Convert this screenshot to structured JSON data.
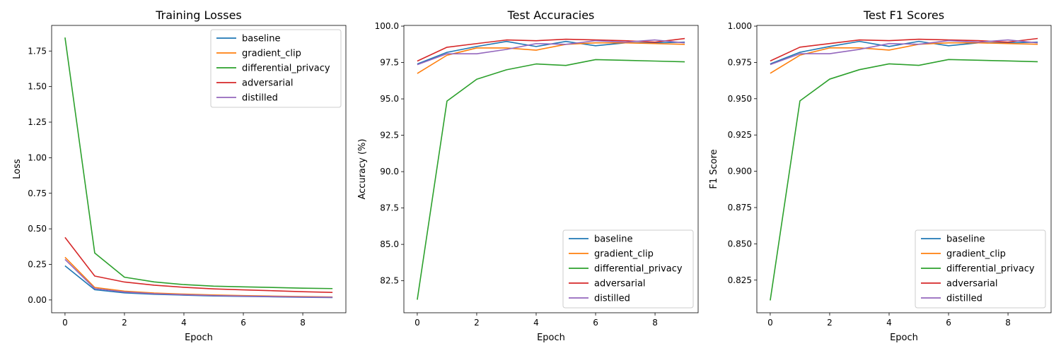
{
  "chart_data": [
    {
      "type": "line",
      "title": "Training Losses",
      "xlabel": "Epoch",
      "ylabel": "Loss",
      "xlim": [
        -0.45,
        9.45
      ],
      "ylim": [
        -0.09,
        1.93
      ],
      "xticks": [
        0,
        2,
        4,
        6,
        8
      ],
      "xtick_labels": [
        "0",
        "2",
        "4",
        "6",
        "8"
      ],
      "yticks": [
        0.0,
        0.25,
        0.5,
        0.75,
        1.0,
        1.25,
        1.5,
        1.75
      ],
      "ytick_labels": [
        "0.00",
        "0.25",
        "0.50",
        "0.75",
        "1.00",
        "1.25",
        "1.50",
        "1.75"
      ],
      "legend_position": "upper right",
      "x": [
        0,
        1,
        2,
        3,
        4,
        5,
        6,
        7,
        8,
        9
      ],
      "series": [
        {
          "name": "baseline",
          "color": "#1f77b4",
          "values": [
            0.24,
            0.072,
            0.05,
            0.04,
            0.034,
            0.028,
            0.025,
            0.022,
            0.019,
            0.017
          ]
        },
        {
          "name": "gradient_clip",
          "color": "#ff7f0e",
          "values": [
            0.3,
            0.088,
            0.062,
            0.049,
            0.041,
            0.035,
            0.031,
            0.027,
            0.024,
            0.021
          ]
        },
        {
          "name": "differential_privacy",
          "color": "#2ca02c",
          "values": [
            1.845,
            0.33,
            0.16,
            0.127,
            0.108,
            0.097,
            0.092,
            0.088,
            0.083,
            0.08
          ]
        },
        {
          "name": "adversarial",
          "color": "#d62728",
          "values": [
            0.44,
            0.168,
            0.126,
            0.104,
            0.089,
            0.078,
            0.071,
            0.065,
            0.058,
            0.053
          ]
        },
        {
          "name": "distilled",
          "color": "#9467bd",
          "values": [
            0.285,
            0.08,
            0.056,
            0.044,
            0.037,
            0.031,
            0.027,
            0.024,
            0.021,
            0.019
          ]
        }
      ]
    },
    {
      "type": "line",
      "title": "Test Accuracies",
      "xlabel": "Epoch",
      "ylabel": "Accuracy (%)",
      "xlim": [
        -0.45,
        9.45
      ],
      "ylim": [
        80.3,
        100.05
      ],
      "xticks": [
        0,
        2,
        4,
        6,
        8
      ],
      "xtick_labels": [
        "0",
        "2",
        "4",
        "6",
        "8"
      ],
      "yticks": [
        82.5,
        85.0,
        87.5,
        90.0,
        92.5,
        95.0,
        97.5,
        100.0
      ],
      "ytick_labels": [
        "82.5",
        "85.0",
        "87.5",
        "90.0",
        "92.5",
        "95.0",
        "97.5",
        "100.0"
      ],
      "legend_position": "lower right",
      "x": [
        0,
        1,
        2,
        3,
        4,
        5,
        6,
        7,
        8,
        9
      ],
      "series": [
        {
          "name": "baseline",
          "color": "#1f77b4",
          "values": [
            97.4,
            98.2,
            98.6,
            98.95,
            98.6,
            98.95,
            98.65,
            98.85,
            98.85,
            98.9
          ]
        },
        {
          "name": "gradient_clip",
          "color": "#ff7f0e",
          "values": [
            96.75,
            98.0,
            98.5,
            98.5,
            98.35,
            98.75,
            98.85,
            98.85,
            98.8,
            98.75
          ]
        },
        {
          "name": "differential_privacy",
          "color": "#2ca02c",
          "values": [
            81.2,
            94.85,
            96.35,
            97.0,
            97.4,
            97.3,
            97.7,
            97.65,
            97.6,
            97.55
          ]
        },
        {
          "name": "adversarial",
          "color": "#d62728",
          "values": [
            97.6,
            98.55,
            98.8,
            99.05,
            99.0,
            99.1,
            99.05,
            99.0,
            98.9,
            99.15
          ]
        },
        {
          "name": "distilled",
          "color": "#9467bd",
          "values": [
            97.35,
            98.1,
            98.1,
            98.4,
            98.8,
            98.75,
            99.0,
            98.9,
            99.05,
            98.85
          ]
        }
      ]
    },
    {
      "type": "line",
      "title": "Test F1 Scores",
      "xlabel": "Epoch",
      "ylabel": "F1 Score",
      "xlim": [
        -0.45,
        9.45
      ],
      "ylim": [
        0.8025,
        1.0005
      ],
      "xticks": [
        0,
        2,
        4,
        6,
        8
      ],
      "xtick_labels": [
        "0",
        "2",
        "4",
        "6",
        "8"
      ],
      "yticks": [
        0.825,
        0.85,
        0.875,
        0.9,
        0.925,
        0.95,
        0.975,
        1.0
      ],
      "ytick_labels": [
        "0.825",
        "0.850",
        "0.875",
        "0.900",
        "0.925",
        "0.950",
        "0.975",
        "1.000"
      ],
      "legend_position": "lower right",
      "x": [
        0,
        1,
        2,
        3,
        4,
        5,
        6,
        7,
        8,
        9
      ],
      "series": [
        {
          "name": "baseline",
          "color": "#1f77b4",
          "values": [
            0.974,
            0.982,
            0.986,
            0.9895,
            0.986,
            0.9895,
            0.9865,
            0.9885,
            0.9885,
            0.989
          ]
        },
        {
          "name": "gradient_clip",
          "color": "#ff7f0e",
          "values": [
            0.9675,
            0.98,
            0.985,
            0.985,
            0.9835,
            0.9875,
            0.9885,
            0.9885,
            0.988,
            0.9875
          ]
        },
        {
          "name": "differential_privacy",
          "color": "#2ca02c",
          "values": [
            0.811,
            0.9485,
            0.9635,
            0.97,
            0.974,
            0.973,
            0.977,
            0.9765,
            0.976,
            0.9755
          ]
        },
        {
          "name": "adversarial",
          "color": "#d62728",
          "values": [
            0.976,
            0.9855,
            0.988,
            0.9905,
            0.99,
            0.991,
            0.9905,
            0.99,
            0.989,
            0.9915
          ]
        },
        {
          "name": "distilled",
          "color": "#9467bd",
          "values": [
            0.9735,
            0.981,
            0.981,
            0.984,
            0.988,
            0.9875,
            0.99,
            0.989,
            0.9905,
            0.9885
          ]
        }
      ]
    }
  ]
}
